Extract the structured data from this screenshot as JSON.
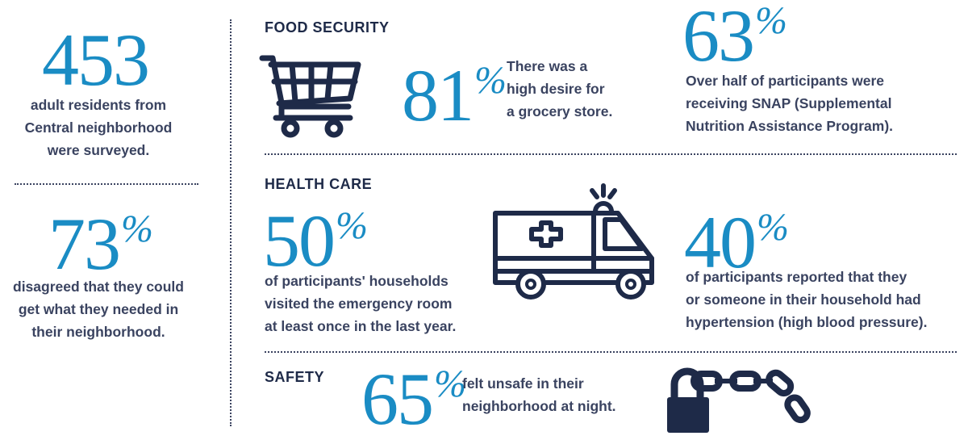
{
  "sidebar": {
    "stat1": {
      "number": "453",
      "lines": [
        "adult residents from",
        "Central neighborhood",
        "were surveyed."
      ]
    },
    "stat2": {
      "number": "73",
      "percent_sign": "%",
      "lines": [
        "disagreed that they could",
        "get what they needed in",
        "their neighborhood."
      ]
    }
  },
  "food_security": {
    "heading": "FOOD SECURITY",
    "icon": "shopping-cart-icon",
    "stat1": {
      "number": "81",
      "percent_sign": "%",
      "lines": [
        "There was a",
        "high desire for",
        "a grocery store."
      ]
    },
    "stat2": {
      "number": "63",
      "percent_sign": "%",
      "lines": [
        "Over half of participants were",
        "receiving SNAP (Supplemental",
        "Nutrition Assistance Program)."
      ]
    }
  },
  "health_care": {
    "heading": "HEALTH CARE",
    "icon": "ambulance-icon",
    "stat1": {
      "number": "50",
      "percent_sign": "%",
      "lines": [
        "of participants' households",
        "visited the emergency room",
        "at least once in the last year."
      ]
    },
    "stat2": {
      "number": "40",
      "percent_sign": "%",
      "lines": [
        "of participants reported that they",
        "or someone in their household had",
        "hypertension (high blood pressure)."
      ]
    }
  },
  "safety": {
    "heading": "SAFETY",
    "icon": "lock-chain-icon",
    "stat1": {
      "number": "65",
      "percent_sign": "%",
      "lines": [
        "felt unsafe in their",
        "neighborhood at night."
      ]
    }
  },
  "colors": {
    "accent": "#1a8cc4",
    "navy": "#1e2a48",
    "text": "#3a4360"
  }
}
